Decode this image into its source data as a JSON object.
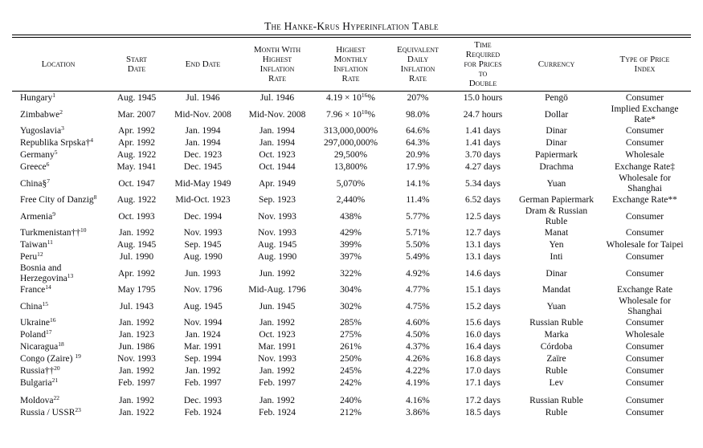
{
  "title": "The Hanke-Krus Hyperinflation Table",
  "table": {
    "columns": [
      "Location",
      "Start\nDate",
      "End Date",
      "Month With\nHighest\nInflation\nRate",
      "Highest\nMonthly\nInflation\nRate",
      "Equivalent\nDaily\nInflation\nRate",
      "Time\nRequired\nfor Prices\nto\nDouble",
      "Currency",
      "Type of Price\nIndex"
    ],
    "rows": [
      {
        "location": "Hungary",
        "sup": "1",
        "start": "Aug. 1945",
        "end": "Jul. 1946",
        "peak_month": "Jul. 1946",
        "rate": "4.19 × 10",
        "rate_exp": "16",
        "rate_suffix": "%",
        "daily": "207%",
        "double_time": "15.0 hours",
        "currency": "Pengö",
        "price_index": "Consumer"
      },
      {
        "location": "Zimbabwe",
        "sup": "2",
        "start": "Mar. 2007",
        "end": "Mid-Nov. 2008",
        "peak_month": "Mid-Nov. 2008",
        "rate": "7.96 × 10",
        "rate_exp": "10",
        "rate_suffix": "%",
        "daily": "98.0%",
        "double_time": "24.7 hours",
        "currency": "Dollar",
        "price_index": "Implied Exchange\nRate*"
      },
      {
        "location": "Yugoslavia",
        "sup": "3",
        "start": "Apr. 1992",
        "end": "Jan. 1994",
        "peak_month": "Jan. 1994",
        "rate": "313,000,000%",
        "daily": "64.6%",
        "double_time": "1.41 days",
        "currency": "Dinar",
        "price_index": "Consumer"
      },
      {
        "location": "Republika Srpska†",
        "sup": "4",
        "start": "Apr. 1992",
        "end": "Jan. 1994",
        "peak_month": "Jan. 1994",
        "rate": "297,000,000%",
        "daily": "64.3%",
        "double_time": "1.41 days",
        "currency": "Dinar",
        "price_index": "Consumer"
      },
      {
        "location": "Germany",
        "sup": "5",
        "start": "Aug. 1922",
        "end": "Dec. 1923",
        "peak_month": "Oct. 1923",
        "rate": "29,500%",
        "daily": "20.9%",
        "double_time": "3.70 days",
        "currency": "Papiermark",
        "price_index": "Wholesale"
      },
      {
        "location": "Greece",
        "sup": "6",
        "start": "May. 1941",
        "end": "Dec. 1945",
        "peak_month": "Oct. 1944",
        "rate": "13,800%",
        "daily": "17.9%",
        "double_time": "4.27 days",
        "currency": "Drachma",
        "price_index": "Exchange Rate‡"
      },
      {
        "location": "China§",
        "sup": "7",
        "start": "Oct. 1947",
        "end": "Mid-May 1949",
        "peak_month": "Apr. 1949",
        "rate": "5,070%",
        "daily": "14.1%",
        "double_time": "5.34 days",
        "currency": "Yuan",
        "price_index": "Wholesale for\nShanghai"
      },
      {
        "location": "Free City of Danzig",
        "sup": "8",
        "start": "Aug. 1922",
        "end": "Mid-Oct. 1923",
        "peak_month": "Sep. 1923",
        "rate": "2,440%",
        "daily": "11.4%",
        "double_time": "6.52 days",
        "currency": "German Papiermark",
        "price_index": "Exchange Rate**"
      },
      {
        "location": "Armenia",
        "sup": "9",
        "start": "Oct. 1993",
        "end": "Dec. 1994",
        "peak_month": "Nov. 1993",
        "rate": "438%",
        "daily": "5.77%",
        "double_time": "12.5 days",
        "currency": "Dram & Russian\nRuble",
        "price_index": "Consumer"
      },
      {
        "location": "Turkmenistan††",
        "sup": "10",
        "start": "Jan. 1992",
        "end": "Nov. 1993",
        "peak_month": "Nov. 1993",
        "rate": "429%",
        "daily": "5.71%",
        "double_time": "12.7 days",
        "currency": "Manat",
        "price_index": "Consumer"
      },
      {
        "location": "Taiwan",
        "sup": "11",
        "start": "Aug. 1945",
        "end": "Sep. 1945",
        "peak_month": "Aug. 1945",
        "rate": "399%",
        "daily": "5.50%",
        "double_time": "13.1 days",
        "currency": "Yen",
        "price_index": "Wholesale for Taipei"
      },
      {
        "location": "Peru",
        "sup": "12",
        "start": "Jul. 1990",
        "end": "Aug. 1990",
        "peak_month": "Aug. 1990",
        "rate": "397%",
        "daily": "5.49%",
        "double_time": "13.1 days",
        "currency": "Inti",
        "price_index": "Consumer"
      },
      {
        "location": "Bosnia and\nHerzegovina",
        "sup": "13",
        "start": "Apr. 1992",
        "end": "Jun. 1993",
        "peak_month": "Jun. 1992",
        "rate": "322%",
        "daily": "4.92%",
        "double_time": "14.6 days",
        "currency": "Dinar",
        "price_index": "Consumer"
      },
      {
        "location": "France",
        "sup": "14",
        "start": "May 1795",
        "end": "Nov. 1796",
        "peak_month": "Mid-Aug. 1796",
        "rate": "304%",
        "daily": "4.77%",
        "double_time": "15.1 days",
        "currency": "Mandat",
        "price_index": "Exchange Rate"
      },
      {
        "location": "China",
        "sup": "15",
        "start": "Jul. 1943",
        "end": "Aug. 1945",
        "peak_month": "Jun. 1945",
        "rate": "302%",
        "daily": "4.75%",
        "double_time": "15.2 days",
        "currency": "Yuan",
        "price_index": "Wholesale for\nShanghai"
      },
      {
        "location": "Ukraine",
        "sup": "16",
        "start": "Jan. 1992",
        "end": "Nov. 1994",
        "peak_month": "Jan. 1992",
        "rate": "285%",
        "daily": "4.60%",
        "double_time": "15.6 days",
        "currency": "Russian Ruble",
        "price_index": "Consumer"
      },
      {
        "location": "Poland",
        "sup": "17",
        "start": "Jan. 1923",
        "end": "Jan. 1924",
        "peak_month": "Oct. 1923",
        "rate": "275%",
        "daily": "4.50%",
        "double_time": "16.0 days",
        "currency": "Marka",
        "price_index": "Wholesale"
      },
      {
        "location": "Nicaragua",
        "sup": "18",
        "start": "Jun. 1986",
        "end": "Mar. 1991",
        "peak_month": "Mar. 1991",
        "rate": "261%",
        "daily": "4.37%",
        "double_time": "16.4 days",
        "currency": "Córdoba",
        "price_index": "Consumer"
      },
      {
        "location": "Congo (Zaire) ",
        "sup": "19",
        "start": "Nov. 1993",
        "end": "Sep. 1994",
        "peak_month": "Nov. 1993",
        "rate": "250%",
        "daily": "4.26%",
        "double_time": "16.8 days",
        "currency": "Zaïre",
        "price_index": "Consumer"
      },
      {
        "location": "Russia††",
        "sup": "20",
        "start": "Jan. 1992",
        "end": "Jan. 1992",
        "peak_month": "Jan. 1992",
        "rate": "245%",
        "daily": "4.22%",
        "double_time": "17.0 days",
        "currency": "Ruble",
        "price_index": "Consumer"
      },
      {
        "location": "Bulgaria",
        "sup": "21",
        "start": "Feb. 1997",
        "end": "Feb. 1997",
        "peak_month": "Feb. 1997",
        "rate": "242%",
        "daily": "4.19%",
        "double_time": "17.1 days",
        "currency": "Lev",
        "price_index": "Consumer"
      },
      {
        "location": "Moldova",
        "sup": "22",
        "gap_before": true,
        "start": "Jan. 1992",
        "end": "Dec. 1993",
        "peak_month": "Jan. 1992",
        "rate": "240%",
        "daily": "4.16%",
        "double_time": "17.2 days",
        "currency": "Russian Ruble",
        "price_index": "Consumer"
      },
      {
        "location": "Russia / USSR",
        "sup": "23",
        "start": "Jan. 1922",
        "end": "Feb. 1924",
        "peak_month": "Feb. 1924",
        "rate": "212%",
        "daily": "3.86%",
        "double_time": "18.5 days",
        "currency": "Ruble",
        "price_index": "Consumer"
      }
    ]
  }
}
